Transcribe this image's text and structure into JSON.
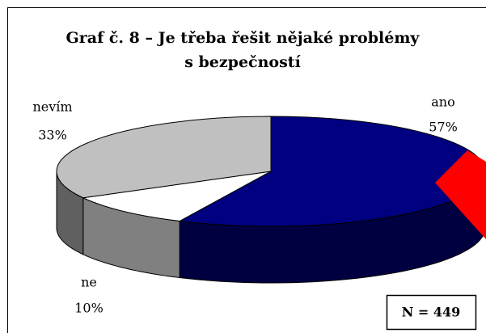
{
  "chart_data": {
    "type": "pie3d",
    "title": "Graf č. 8 – Je třeba řešit nějaké problémy",
    "subtitle": "s bezpečností",
    "categories": [
      "ano",
      "ne",
      "nevím"
    ],
    "values": [
      57,
      10,
      33
    ],
    "value_labels": [
      "57%",
      "10%",
      "33%"
    ],
    "colors": [
      "#000080",
      "#ffffff",
      "#c0c0c0"
    ],
    "annotation": "N = 449"
  }
}
